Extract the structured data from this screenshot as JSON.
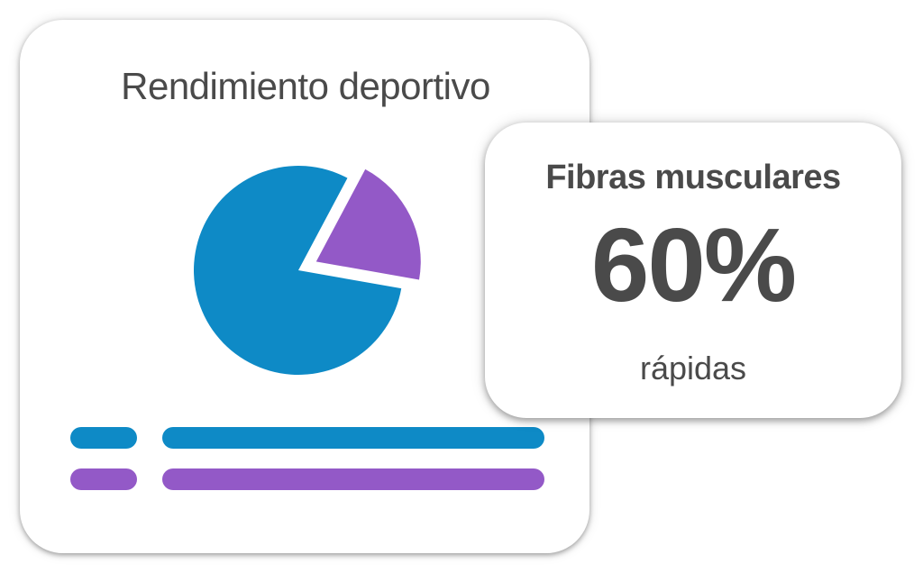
{
  "chart_card": {
    "title": "Rendimiento deportivo"
  },
  "stat_card": {
    "title": "Fibras musculares",
    "value": "60%",
    "subtitle": "rápidas"
  },
  "colors": {
    "blue": "#0E8AC6",
    "purple": "#9359C7",
    "text": "#4A4A4A"
  },
  "chart_data": {
    "type": "pie",
    "title": "Rendimiento deportivo",
    "slices": [
      {
        "value": 80,
        "color": "#0E8AC6",
        "exploded": false
      },
      {
        "value": 20,
        "color": "#9359C7",
        "exploded": true
      }
    ],
    "legend": "bottom"
  }
}
